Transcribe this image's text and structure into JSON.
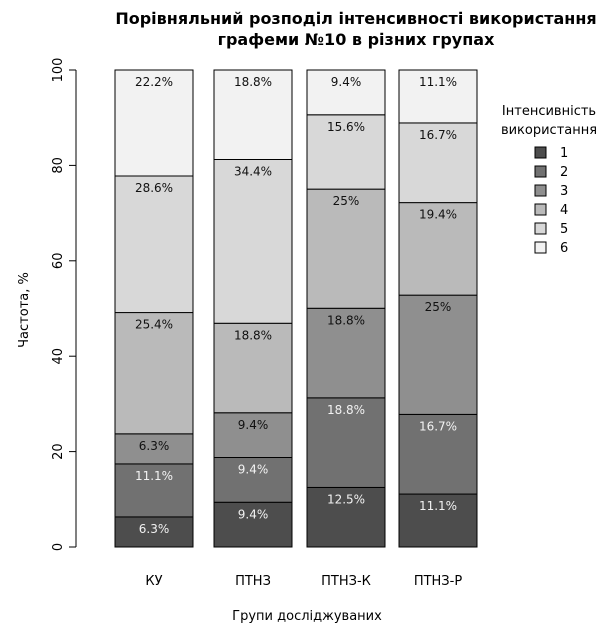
{
  "chart_data": {
    "type": "bar",
    "stacked": true,
    "title_lines": [
      "Порівняльний розподіл інтенсивності використання",
      "графеми №10 в різних групах"
    ],
    "xlabel": "Групи досліджуваних",
    "ylabel": "Частота, %",
    "ylim": [
      0,
      100
    ],
    "yticks": [
      "0",
      "20",
      "40",
      "60",
      "80",
      "100"
    ],
    "grid": false,
    "legend_position": "right",
    "legend_title_lines": [
      "Інтенсивність",
      "використання"
    ],
    "categories": [
      "КУ",
      "ПТНЗ",
      "ПТНЗ-К",
      "ПТНЗ-Р"
    ],
    "series": [
      {
        "name": "1",
        "color": "#4d4d4d",
        "values": [
          6.3,
          9.4,
          12.5,
          11.1
        ],
        "labels": [
          "6.3%",
          "9.4%",
          "12.5%",
          "11.1%"
        ]
      },
      {
        "name": "2",
        "color": "#717171",
        "values": [
          11.1,
          9.4,
          18.8,
          16.7
        ],
        "labels": [
          "11.1%",
          "9.4%",
          "18.8%",
          "16.7%"
        ]
      },
      {
        "name": "3",
        "color": "#8f8f8f",
        "values": [
          6.3,
          9.4,
          18.8,
          25
        ],
        "labels": [
          "6.3%",
          "9.4%",
          "18.8%",
          "25%"
        ]
      },
      {
        "name": "4",
        "color": "#bababa",
        "values": [
          25.4,
          18.8,
          25,
          19.4
        ],
        "labels": [
          "25.4%",
          "18.8%",
          "25%",
          "19.4%"
        ]
      },
      {
        "name": "5",
        "color": "#d8d8d8",
        "values": [
          28.6,
          34.4,
          15.6,
          16.7
        ],
        "labels": [
          "28.6%",
          "34.4%",
          "15.6%",
          "16.7%"
        ]
      },
      {
        "name": "6",
        "color": "#f2f2f2",
        "values": [
          22.2,
          18.8,
          9.4,
          11.1
        ],
        "labels": [
          "22.2%",
          "18.8%",
          "9.4%",
          "11.1%"
        ]
      }
    ]
  }
}
